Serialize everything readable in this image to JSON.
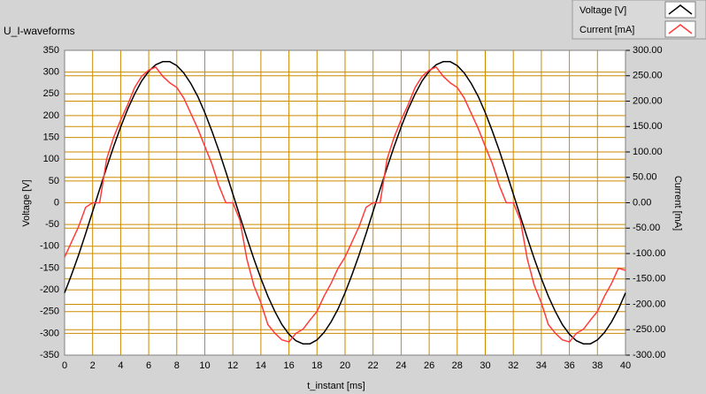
{
  "chart_data": {
    "type": "line",
    "title": "U_I-waveforms",
    "xlabel": "t_instant [ms]",
    "ylabel": "Voltage [V]",
    "y2label": "Current [mA]",
    "x": [
      0,
      0.5,
      1,
      1.5,
      2,
      2.5,
      3,
      3.5,
      4,
      4.5,
      5,
      5.5,
      6,
      6.5,
      7,
      7.5,
      8,
      8.5,
      9,
      9.5,
      10,
      10.5,
      11,
      11.5,
      12,
      12.5,
      13,
      13.5,
      14,
      14.5,
      15,
      15.5,
      16,
      16.5,
      17,
      17.5,
      18,
      18.5,
      19,
      19.5,
      20,
      20.5,
      21,
      21.5,
      22,
      22.5,
      23,
      23.5,
      24,
      24.5,
      25,
      25.5,
      26,
      26.5,
      27,
      27.5,
      28,
      28.5,
      29,
      29.5,
      30,
      30.5,
      31,
      31.5,
      32,
      32.5,
      33,
      33.5,
      34,
      34.5,
      35,
      35.5,
      36,
      36.5,
      37,
      37.5,
      38,
      38.5,
      39,
      39.5,
      40
    ],
    "series": [
      {
        "name": "Voltage [V]",
        "color": "#000000",
        "axis": "y",
        "values": [
          -207,
          -165,
          -120,
          -71,
          -20,
          31,
          81,
          129,
          174,
          215,
          250,
          280,
          302,
          317,
          324,
          324,
          315,
          298,
          274,
          244,
          207,
          165,
          120,
          71,
          20,
          -31,
          -81,
          -129,
          -174,
          -215,
          -250,
          -280,
          -302,
          -317,
          -324,
          -324,
          -315,
          -298,
          -274,
          -244,
          -207,
          -165,
          -120,
          -71,
          -20,
          31,
          81,
          129,
          174,
          215,
          250,
          280,
          302,
          317,
          324,
          324,
          315,
          298,
          274,
          244,
          207,
          165,
          120,
          71,
          20,
          -31,
          -81,
          -129,
          -174,
          -215,
          -250,
          -280,
          -302,
          -317,
          -324,
          -324,
          -315,
          -298,
          -274,
          -244,
          -207
        ]
      },
      {
        "name": "Current [mA]",
        "color": "#ff3b3b",
        "axis": "y2",
        "values": [
          -107,
          -77,
          -47,
          -9,
          0,
          0,
          86,
          129,
          163,
          193,
          227,
          249,
          261,
          267,
          249,
          236,
          227,
          206,
          176,
          146,
          111,
          77,
          34,
          0,
          0,
          -34,
          -111,
          -163,
          -197,
          -240,
          -257,
          -270,
          -274,
          -257,
          -249,
          -231,
          -214,
          -184,
          -159,
          -129,
          -107,
          -77,
          -47,
          -9,
          0,
          0,
          86,
          129,
          163,
          193,
          227,
          249,
          261,
          267,
          249,
          236,
          227,
          206,
          176,
          146,
          111,
          77,
          34,
          0,
          0,
          -34,
          -111,
          -163,
          -197,
          -240,
          -257,
          -270,
          -274,
          -257,
          -249,
          -231,
          -214,
          -184,
          -159,
          -129,
          -133
        ]
      }
    ],
    "xlim": [
      0,
      40
    ],
    "xticks": [
      0,
      2,
      4,
      6,
      8,
      10,
      12,
      14,
      16,
      18,
      20,
      22,
      24,
      26,
      28,
      30,
      32,
      34,
      36,
      38,
      40
    ],
    "ylim": [
      -350,
      350
    ],
    "yticks": [
      -350,
      -300,
      -250,
      -200,
      -150,
      -100,
      -50,
      0,
      50,
      100,
      150,
      200,
      250,
      300,
      350
    ],
    "y2lim": [
      -300,
      300
    ],
    "y2ticks": [
      {
        "value": -300,
        "label": "-300.00"
      },
      {
        "value": -250,
        "label": "-250.00"
      },
      {
        "value": -200,
        "label": "-200.00"
      },
      {
        "value": -150,
        "label": "-150.00"
      },
      {
        "value": -100,
        "label": "-100.00"
      },
      {
        "value": -50,
        "label": "-50.00"
      },
      {
        "value": 0,
        "label": "0.00"
      },
      {
        "value": 50,
        "label": "50.00"
      },
      {
        "value": 100,
        "label": "100.00"
      },
      {
        "value": 150,
        "label": "150.00"
      },
      {
        "value": 200,
        "label": "200.00"
      },
      {
        "value": 250,
        "label": "250.00"
      },
      {
        "value": 300,
        "label": "300.00"
      }
    ],
    "grid": true,
    "grid_color": "#cc8a00",
    "legend": "top-right"
  }
}
